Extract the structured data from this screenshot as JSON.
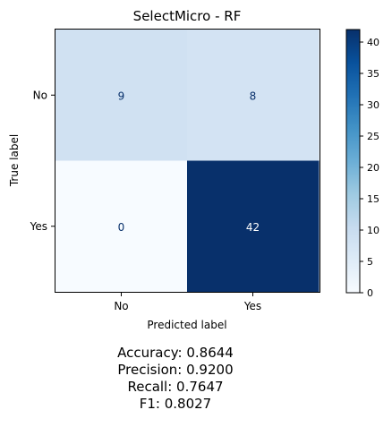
{
  "chart_data": {
    "type": "heatmap",
    "title": "SelectMicro - RF",
    "xlabel": "Predicted label",
    "ylabel": "True label",
    "x_categories": [
      "No",
      "Yes"
    ],
    "y_categories": [
      "No",
      "Yes"
    ],
    "values": [
      [
        9,
        8
      ],
      [
        0,
        42
      ]
    ],
    "colormap": "Blues",
    "colorbar": {
      "min": 0,
      "max": 42,
      "ticks": [
        0,
        5,
        10,
        15,
        20,
        25,
        30,
        35,
        40
      ]
    },
    "cell_colors": [
      [
        "#d0e1f2",
        "#d3e3f3"
      ],
      [
        "#f7fbff",
        "#08306b"
      ]
    ],
    "text_colors": [
      [
        "#08306b",
        "#08306b"
      ],
      [
        "#08306b",
        "#ffffff"
      ]
    ]
  },
  "metrics": {
    "accuracy": "Accuracy: 0.8644",
    "precision": "Precision: 0.9200",
    "recall": "Recall: 0.7647",
    "f1": "F1: 0.8027"
  }
}
